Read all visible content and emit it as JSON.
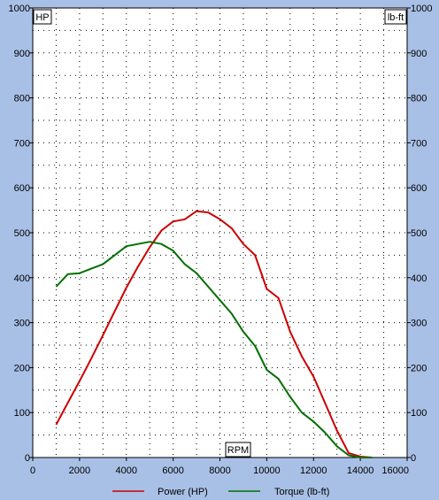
{
  "chart_data": {
    "type": "line",
    "x": [
      1000,
      1500,
      2000,
      2500,
      3000,
      3500,
      4000,
      4500,
      5000,
      5500,
      6000,
      6500,
      7000,
      7500,
      8000,
      8500,
      9000,
      9500,
      10000,
      10500,
      11000,
      11500,
      12000,
      12500,
      13000,
      13500,
      14000,
      14500
    ],
    "series": [
      {
        "name": "Power (HP)",
        "color": "#cc0000",
        "values": [
          73,
          122,
          170,
          220,
          272,
          325,
          378,
          425,
          468,
          505,
          525,
          530,
          548,
          545,
          530,
          510,
          475,
          450,
          375,
          355,
          280,
          225,
          180,
          120,
          60,
          10,
          2,
          0
        ]
      },
      {
        "name": "Torque (lb-ft)",
        "color": "#007000",
        "values": [
          380,
          408,
          410,
          420,
          430,
          450,
          470,
          475,
          480,
          475,
          460,
          430,
          410,
          380,
          350,
          320,
          280,
          248,
          195,
          175,
          135,
          100,
          80,
          55,
          25,
          5,
          0,
          0
        ]
      }
    ],
    "xlim": [
      0,
      16000
    ],
    "ylim": [
      0,
      1000
    ],
    "x_ticks": [
      "0",
      "2000",
      "4000",
      "6000",
      "8000",
      "10000",
      "12000",
      "14000",
      "16000"
    ],
    "y_ticks": [
      "0",
      "100",
      "200",
      "300",
      "400",
      "500",
      "600",
      "700",
      "800",
      "900",
      "1000"
    ],
    "ylabel_left": "HP",
    "ylabel_right": "lb-ft",
    "xlabel": "RPM",
    "grid": true,
    "legend": "bottom"
  },
  "colors": {
    "background": "#a9c0e6",
    "plot_background": "#ffffff",
    "power": "#cc0000",
    "torque": "#007000"
  }
}
